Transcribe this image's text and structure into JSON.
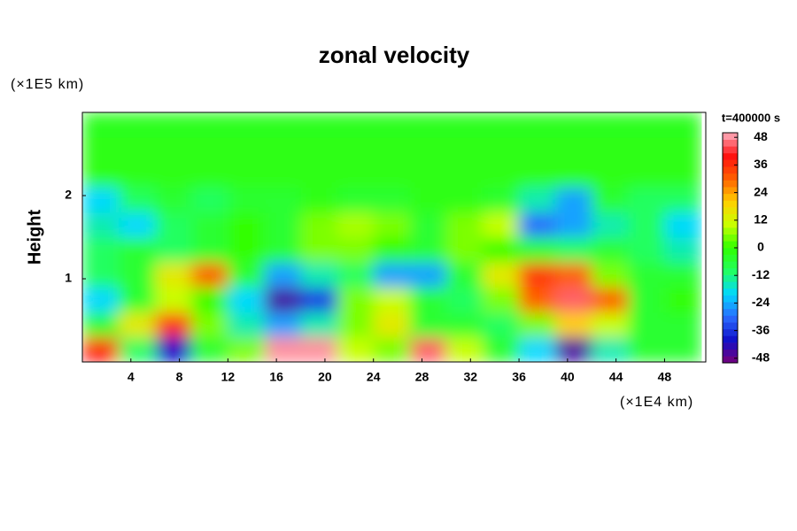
{
  "chart_data": {
    "type": "heatmap",
    "title": "zonal velocity",
    "x_unit": "(×1E4 km)",
    "y_unit": "(×1E5 km)",
    "y_label": "Height",
    "colorbar_title": "t=400000 s",
    "xlim": [
      0,
      51.4
    ],
    "xticks": [
      4,
      8,
      12,
      16,
      20,
      24,
      28,
      32,
      36,
      40,
      44,
      48
    ],
    "ylim": [
      0,
      3
    ],
    "yticks": [
      1,
      2
    ],
    "clim": [
      -50,
      50
    ],
    "cticks": [
      48,
      36,
      24,
      12,
      0,
      -12,
      -24,
      -36,
      -48
    ],
    "colorscale": [
      "#7a007a",
      "#1010c8",
      "#2a6cff",
      "#00d8ff",
      "#22ff60",
      "#30ff00",
      "#c8ff00",
      "#ffd000",
      "#ff6000",
      "#ff1010",
      "#ffb0c0"
    ],
    "x": [
      1.5,
      4.5,
      7.5,
      10.5,
      13.5,
      16.5,
      19.5,
      22.5,
      25.5,
      28.5,
      31.5,
      34.5,
      37.5,
      40.5,
      43.5,
      46.5,
      49.5
    ],
    "y": [
      0.15,
      0.45,
      0.75,
      1.05,
      1.35,
      1.65,
      1.95,
      2.25,
      2.55,
      2.85
    ],
    "z": [
      [
        38,
        -10,
        -40,
        -5,
        5,
        48,
        48,
        10,
        5,
        45,
        10,
        -5,
        -20,
        -45,
        -15,
        -5,
        -5
      ],
      [
        -5,
        15,
        35,
        5,
        -15,
        -25,
        -15,
        5,
        15,
        -5,
        -5,
        -10,
        5,
        20,
        10,
        -5,
        -5
      ],
      [
        -20,
        -5,
        10,
        0,
        -20,
        -45,
        -35,
        5,
        10,
        -5,
        -10,
        5,
        30,
        45,
        30,
        -5,
        0
      ],
      [
        -10,
        -5,
        15,
        30,
        -5,
        -25,
        -15,
        -10,
        -25,
        -25,
        -5,
        15,
        35,
        30,
        5,
        -5,
        -5
      ],
      [
        -10,
        -5,
        -10,
        -5,
        0,
        -5,
        5,
        5,
        0,
        -5,
        5,
        0,
        -5,
        -10,
        -5,
        -10,
        -15
      ],
      [
        -15,
        -20,
        -10,
        -5,
        0,
        -5,
        5,
        8,
        5,
        -5,
        5,
        10,
        -30,
        -25,
        -15,
        -10,
        -20
      ],
      [
        -20,
        -10,
        -5,
        -10,
        -5,
        -5,
        -2,
        -5,
        -5,
        -2,
        -2,
        -5,
        -15,
        -25,
        -5,
        -10,
        -10
      ],
      [
        -2,
        -2,
        -2,
        -2,
        -2,
        -2,
        -2,
        -2,
        -2,
        -2,
        -2,
        -2,
        -2,
        -2,
        -2,
        -2,
        -2
      ],
      [
        -2,
        -2,
        -2,
        -2,
        -2,
        -2,
        -2,
        -2,
        -2,
        -2,
        -2,
        -2,
        -2,
        -2,
        -2,
        -2,
        -2
      ],
      [
        -3,
        -3,
        -3,
        -3,
        -3,
        -3,
        -3,
        -3,
        -3,
        -3,
        -3,
        -3,
        -3,
        -3,
        -3,
        -3,
        -3
      ]
    ]
  }
}
